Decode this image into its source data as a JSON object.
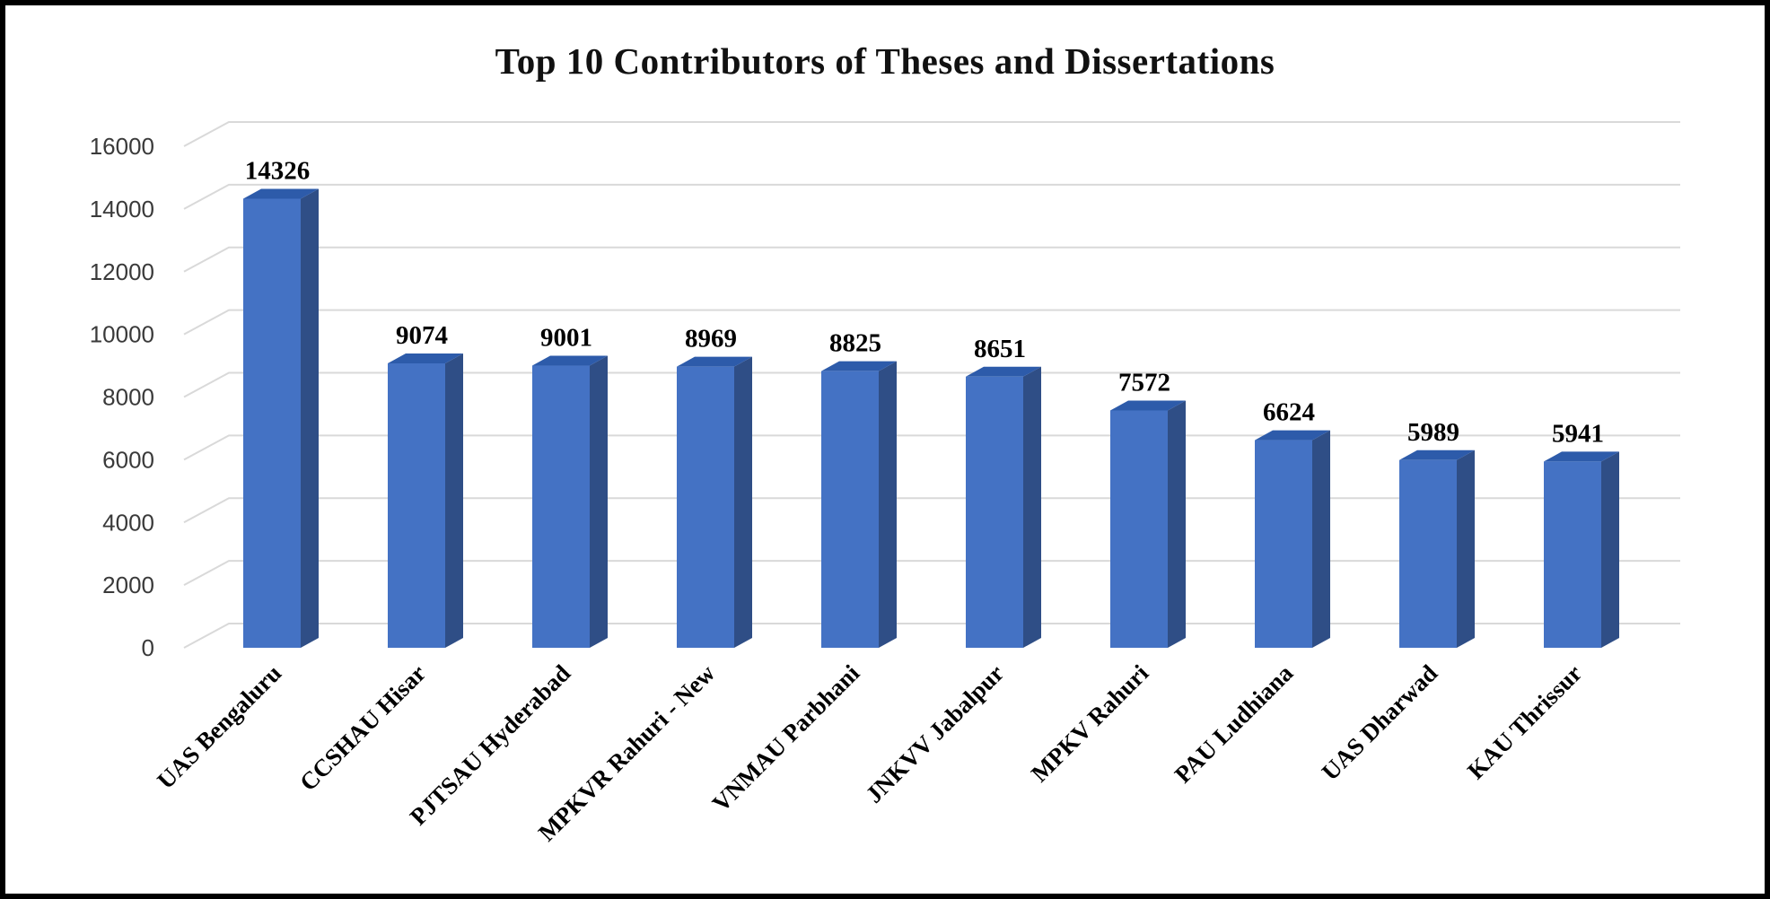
{
  "chart_data": {
    "type": "bar",
    "title": "Top 10 Contributors of Theses and Dissertations",
    "categories": [
      "UAS Bengaluru",
      "CCSHAU Hisar",
      "PJTSAU Hyderabad",
      "MPKVR Rahuri - New",
      "VNMAU Parbhani",
      "JNKVV  Jabalpur",
      "MPKV Rahuri",
      "PAU Ludhiana",
      "UAS Dharwad",
      "KAU Thrissur"
    ],
    "values": [
      14326,
      9074,
      9001,
      8969,
      8825,
      8651,
      7572,
      6624,
      5989,
      5941
    ],
    "xlabel": "",
    "ylabel": "",
    "ylim": [
      0,
      16000
    ],
    "yticks": [
      "0",
      "2000",
      "4000",
      "6000",
      "8000",
      "10000",
      "12000",
      "14000",
      "16000"
    ],
    "grid": true,
    "legend": "none",
    "style": "3d-column",
    "colors": {
      "front": "#4472C4",
      "side": "#2F4E86",
      "top": "#2D5BAA",
      "grid": "#D9D9D9"
    }
  }
}
